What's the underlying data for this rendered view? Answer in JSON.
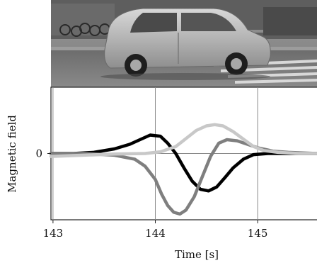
{
  "chart_data": {
    "type": "line",
    "xlabel": "Time [s]",
    "ylabel": "Magnetic field",
    "xlim": [
      142.98,
      145.58
    ],
    "ylim": [
      -1.15,
      1.15
    ],
    "x_ticks": [
      "143",
      "144",
      "145"
    ],
    "y_ticks": [
      "0"
    ],
    "grid": true,
    "legend": "none",
    "series": [
      {
        "color": "#000000",
        "x": [
          142.98,
          143.2,
          143.4,
          143.6,
          143.75,
          143.85,
          143.95,
          144.05,
          144.12,
          144.2,
          144.28,
          144.36,
          144.44,
          144.52,
          144.6,
          144.68,
          144.76,
          144.86,
          144.96,
          145.1,
          145.3,
          145.58
        ],
        "y": [
          0.0,
          0.0,
          0.02,
          0.08,
          0.16,
          0.24,
          0.32,
          0.3,
          0.18,
          0.0,
          -0.25,
          -0.48,
          -0.62,
          -0.65,
          -0.58,
          -0.42,
          -0.25,
          -0.1,
          -0.02,
          0.0,
          0.0,
          0.0
        ]
      },
      {
        "color": "#7f7f7f",
        "x": [
          142.98,
          143.3,
          143.6,
          143.8,
          143.9,
          144.0,
          144.06,
          144.12,
          144.18,
          144.24,
          144.3,
          144.38,
          144.46,
          144.54,
          144.62,
          144.7,
          144.8,
          144.9,
          145.0,
          145.15,
          145.3,
          145.58
        ],
        "y": [
          0.0,
          0.0,
          -0.03,
          -0.1,
          -0.22,
          -0.45,
          -0.7,
          -0.9,
          -1.02,
          -1.05,
          -0.98,
          -0.75,
          -0.4,
          -0.05,
          0.18,
          0.24,
          0.22,
          0.16,
          0.1,
          0.04,
          0.02,
          0.0
        ]
      },
      {
        "color": "#c8c8c8",
        "x": [
          142.98,
          143.3,
          143.6,
          143.9,
          144.05,
          144.2,
          144.3,
          144.4,
          144.5,
          144.58,
          144.66,
          144.76,
          144.86,
          144.96,
          145.06,
          145.2,
          145.4,
          145.58
        ],
        "y": [
          -0.05,
          -0.03,
          -0.01,
          0.0,
          0.03,
          0.12,
          0.26,
          0.4,
          0.48,
          0.5,
          0.48,
          0.38,
          0.25,
          0.12,
          0.05,
          0.02,
          0.0,
          0.0
        ]
      }
    ]
  }
}
